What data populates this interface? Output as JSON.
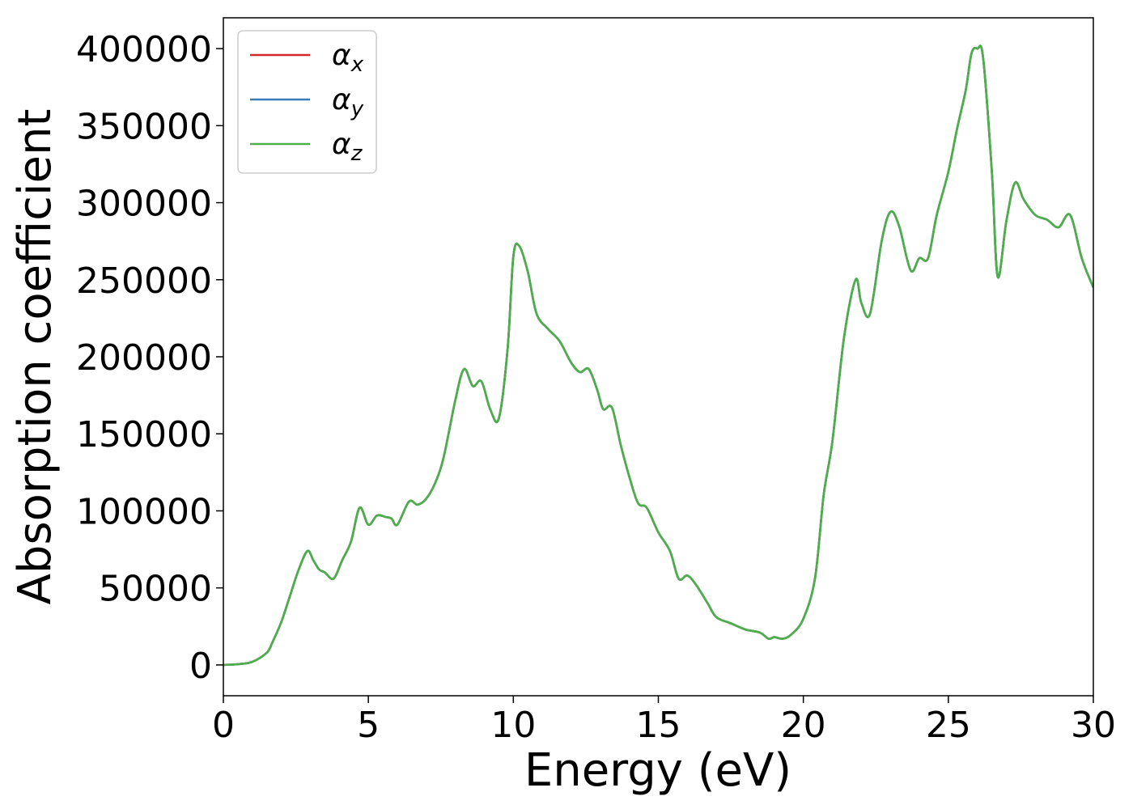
{
  "chart_data": {
    "type": "line",
    "xlabel": "Energy (eV)",
    "ylabel": "Absorption coefficient",
    "xlim": [
      0,
      30
    ],
    "ylim": [
      -20000,
      420000
    ],
    "xticks": [
      0,
      5,
      10,
      15,
      20,
      25,
      30
    ],
    "xtick_labels": [
      "0",
      "5",
      "10",
      "15",
      "20",
      "25",
      "30"
    ],
    "yticks": [
      0,
      50000,
      100000,
      150000,
      200000,
      250000,
      300000,
      350000,
      400000
    ],
    "ytick_labels": [
      "0",
      "50000",
      "100000",
      "150000",
      "200000",
      "250000",
      "300000",
      "350000",
      "400000"
    ],
    "grid": false,
    "legend_position": "top-left",
    "x": [
      0,
      0.5,
      1.0,
      1.5,
      1.7,
      2.0,
      2.3,
      2.6,
      2.9,
      3.1,
      3.3,
      3.5,
      3.8,
      4.1,
      4.4,
      4.7,
      5.0,
      5.3,
      5.6,
      5.8,
      6.0,
      6.4,
      6.7,
      7.0,
      7.3,
      7.6,
      8.0,
      8.3,
      8.6,
      8.9,
      9.2,
      9.5,
      9.8,
      10.0,
      10.2,
      10.5,
      10.8,
      11.2,
      11.6,
      12.0,
      12.3,
      12.6,
      12.9,
      13.1,
      13.4,
      13.7,
      14.0,
      14.3,
      14.6,
      15.0,
      15.4,
      15.7,
      16.0,
      16.3,
      16.7,
      17.0,
      17.5,
      18.0,
      18.5,
      18.8,
      19.0,
      19.3,
      19.6,
      20.0,
      20.4,
      20.7,
      21.0,
      21.4,
      21.8,
      22.0,
      22.3,
      22.7,
      23.0,
      23.3,
      23.7,
      24.0,
      24.3,
      24.6,
      25.0,
      25.3,
      25.6,
      25.8,
      26.0,
      26.2,
      26.5,
      26.7,
      27.0,
      27.3,
      27.6,
      28.0,
      28.4,
      28.8,
      29.2,
      29.6,
      30.0
    ],
    "series": [
      {
        "name": "α_x",
        "color": "#d62728",
        "values": [
          0,
          500,
          2000,
          8000,
          15000,
          28000,
          45000,
          62000,
          74000,
          68000,
          62000,
          60000,
          56000,
          68000,
          80000,
          102000,
          91000,
          97000,
          96000,
          95000,
          91000,
          106000,
          104000,
          108000,
          118000,
          135000,
          172000,
          192000,
          181000,
          184000,
          166000,
          160000,
          205000,
          265000,
          272000,
          255000,
          228000,
          218000,
          210000,
          196000,
          190000,
          192000,
          178000,
          166000,
          167000,
          143000,
          122000,
          105000,
          102000,
          86000,
          74000,
          56000,
          58000,
          52000,
          40000,
          31000,
          27000,
          23000,
          21000,
          17000,
          18000,
          17000,
          20000,
          30000,
          56000,
          110000,
          145000,
          212000,
          250000,
          235000,
          228000,
          275000,
          294000,
          285000,
          256000,
          264000,
          264000,
          292000,
          320000,
          348000,
          373000,
          397000,
          400000,
          394000,
          320000,
          252000,
          288000,
          313000,
          302000,
          292000,
          289000,
          284000,
          292000,
          264000,
          245000
        ]
      },
      {
        "name": "α_y",
        "color": "#377eb8",
        "values": [
          0,
          500,
          2000,
          8000,
          15000,
          28000,
          45000,
          62000,
          74000,
          68000,
          62000,
          60000,
          56000,
          68000,
          80000,
          102000,
          91000,
          97000,
          96000,
          95000,
          91000,
          106000,
          104000,
          108000,
          118000,
          135000,
          172000,
          192000,
          181000,
          184000,
          166000,
          160000,
          205000,
          265000,
          272000,
          255000,
          228000,
          218000,
          210000,
          196000,
          190000,
          192000,
          178000,
          166000,
          167000,
          143000,
          122000,
          105000,
          102000,
          86000,
          74000,
          56000,
          58000,
          52000,
          40000,
          31000,
          27000,
          23000,
          21000,
          17000,
          18000,
          17000,
          20000,
          30000,
          56000,
          110000,
          145000,
          212000,
          250000,
          235000,
          228000,
          275000,
          294000,
          285000,
          256000,
          264000,
          264000,
          292000,
          320000,
          348000,
          373000,
          397000,
          400000,
          394000,
          320000,
          252000,
          288000,
          313000,
          302000,
          292000,
          289000,
          284000,
          292000,
          264000,
          245000
        ]
      },
      {
        "name": "α_z",
        "color": "#4daf4a",
        "values": [
          0,
          500,
          2000,
          8000,
          15000,
          28000,
          45000,
          62000,
          74000,
          68000,
          62000,
          60000,
          56000,
          68000,
          80000,
          102000,
          91000,
          97000,
          96000,
          95000,
          91000,
          106000,
          104000,
          108000,
          118000,
          135000,
          172000,
          192000,
          181000,
          184000,
          166000,
          160000,
          205000,
          265000,
          272000,
          255000,
          228000,
          218000,
          210000,
          196000,
          190000,
          192000,
          178000,
          166000,
          167000,
          143000,
          122000,
          105000,
          102000,
          86000,
          74000,
          56000,
          58000,
          52000,
          40000,
          31000,
          27000,
          23000,
          21000,
          17000,
          18000,
          17000,
          20000,
          30000,
          56000,
          110000,
          145000,
          212000,
          250000,
          235000,
          228000,
          275000,
          294000,
          285000,
          256000,
          264000,
          264000,
          292000,
          320000,
          348000,
          373000,
          397000,
          400000,
          394000,
          320000,
          252000,
          288000,
          313000,
          302000,
          292000,
          289000,
          284000,
          292000,
          264000,
          245000
        ]
      }
    ],
    "legend": [
      {
        "symbol": "α",
        "sub": "x",
        "color": "#d62728"
      },
      {
        "symbol": "α",
        "sub": "y",
        "color": "#377eb8"
      },
      {
        "symbol": "α",
        "sub": "z",
        "color": "#4daf4a"
      }
    ]
  }
}
